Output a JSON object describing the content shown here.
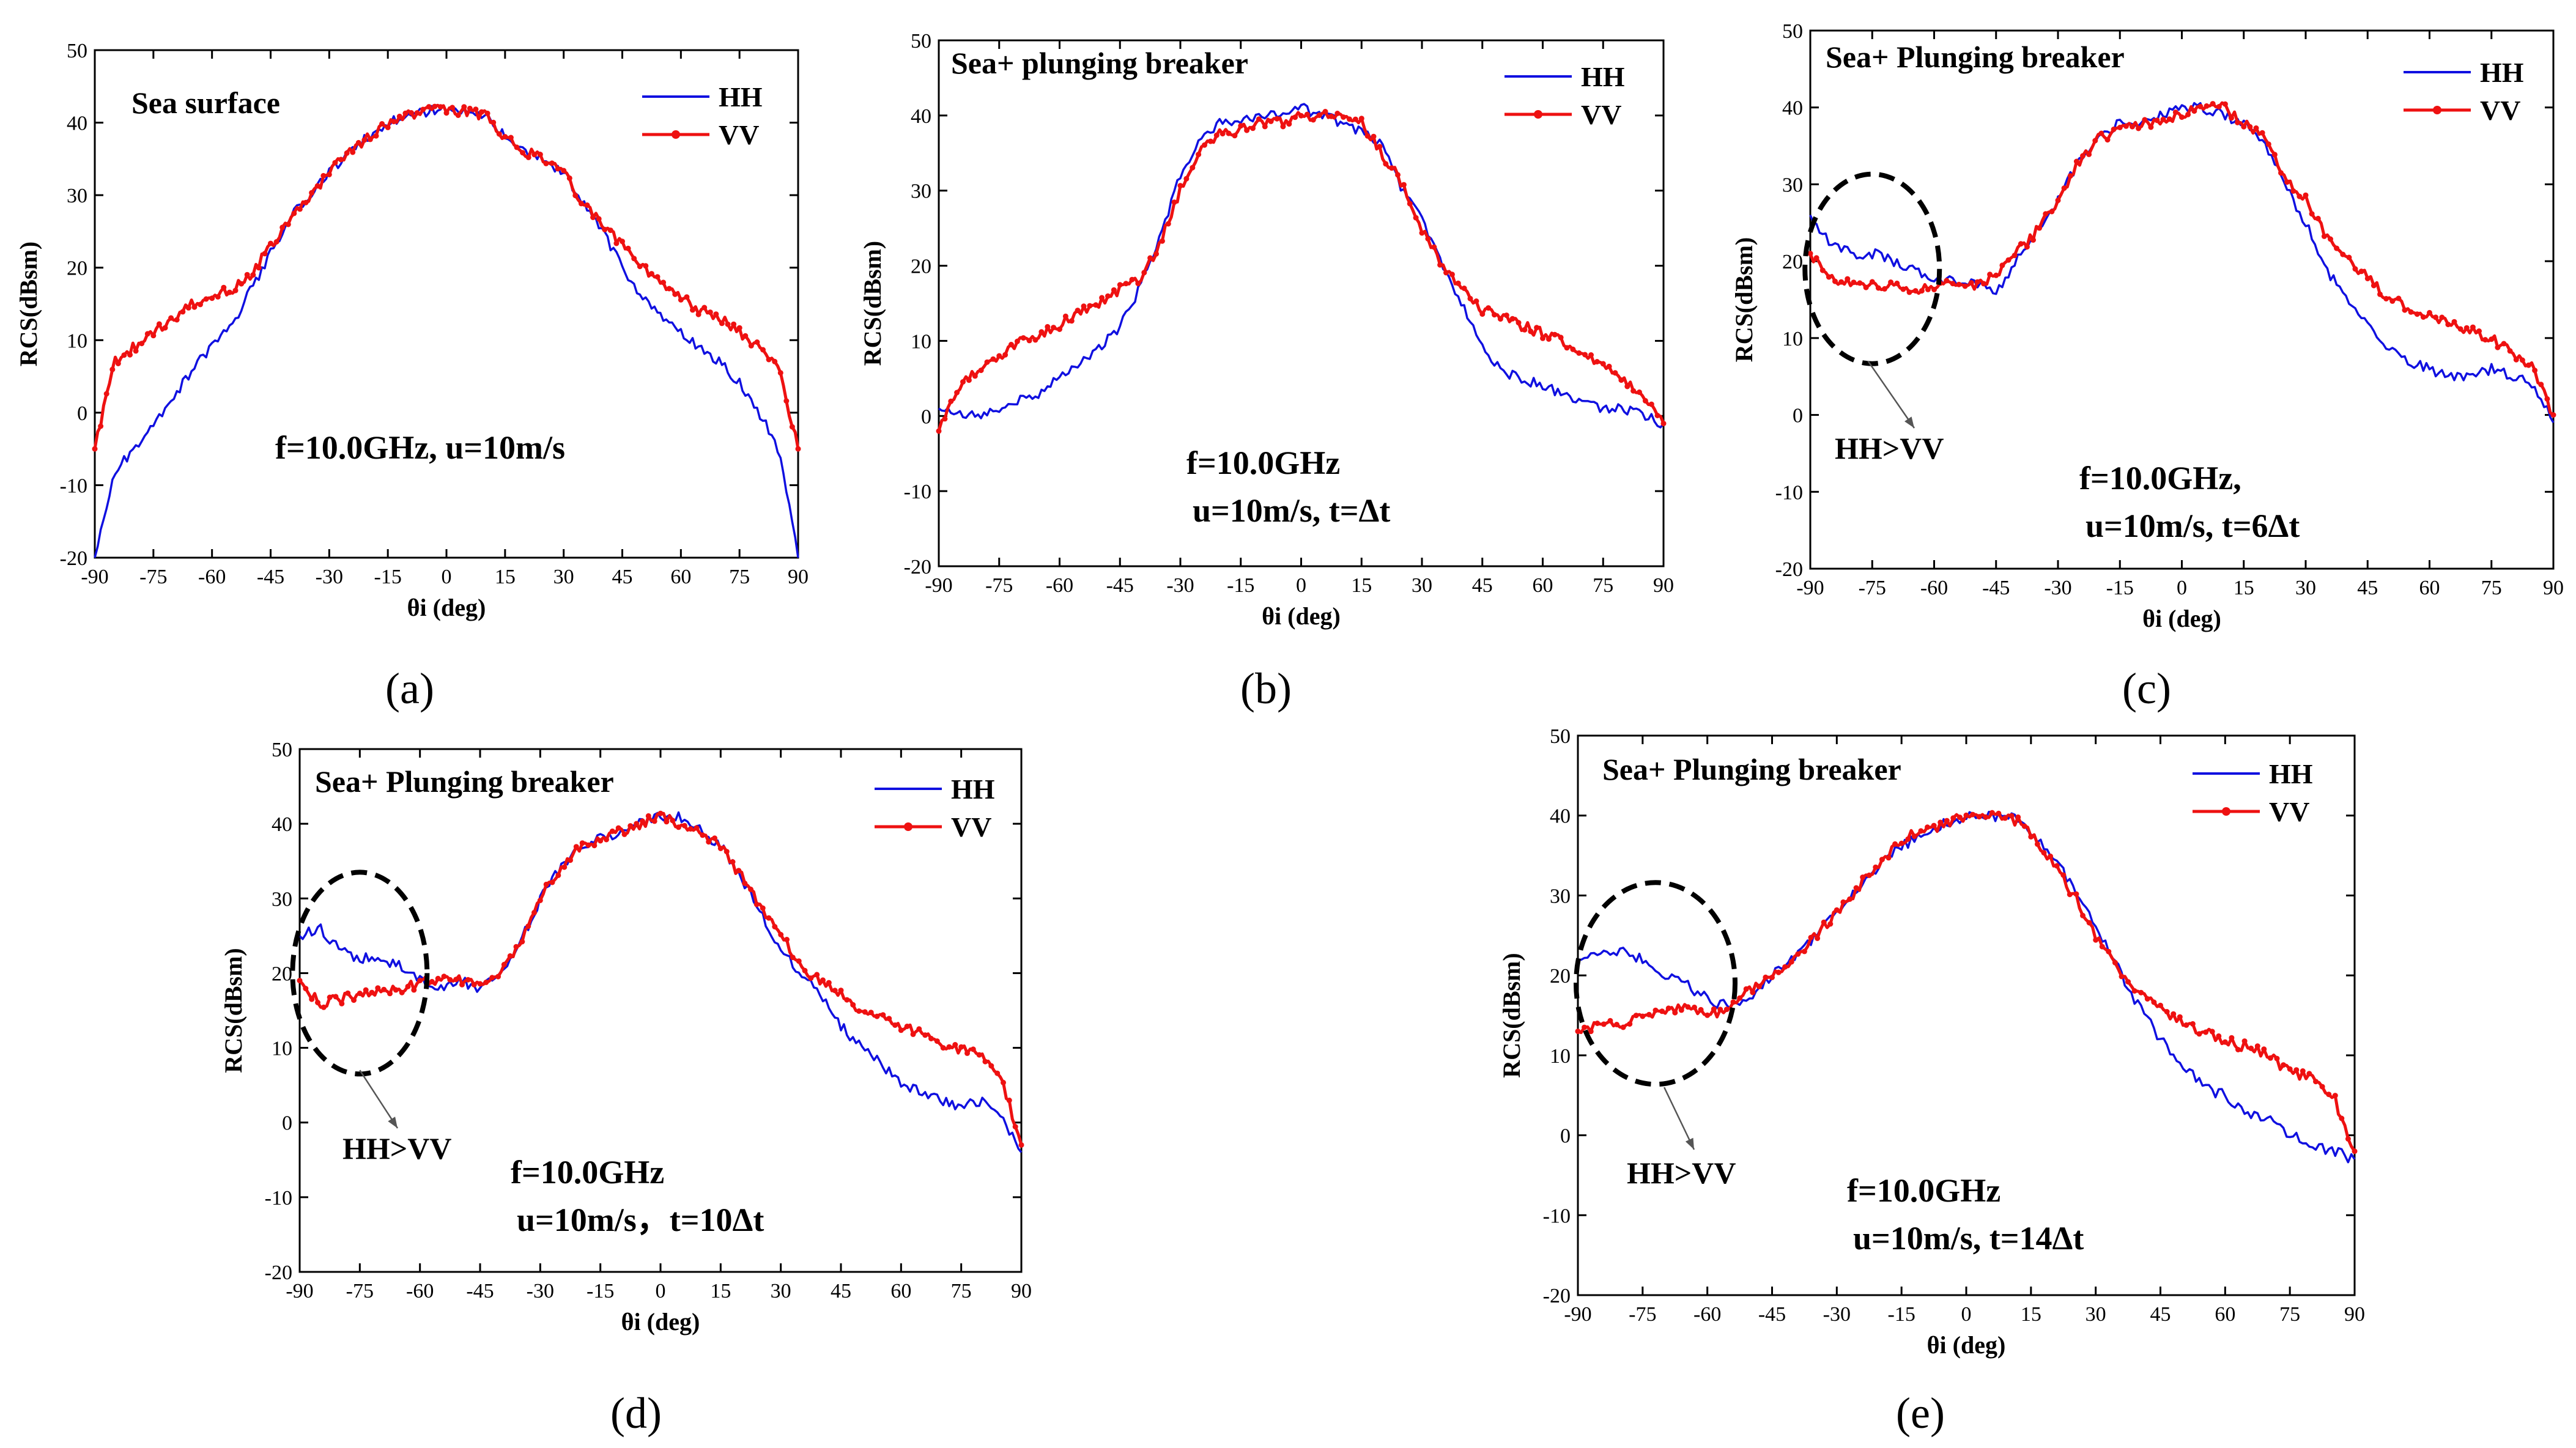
{
  "figure": {
    "panel_labels": [
      "(a)",
      "(b)",
      "(c)",
      "(d)",
      "(e)"
    ]
  },
  "chart_data": [
    {
      "type": "line",
      "panel": "(a)",
      "annotation": "Sea surface",
      "params_line1": "f=10.0GHz, u=10m/s",
      "params_line2": "",
      "xlabel": "θi (deg)",
      "ylabel": "RCS(dBsm)",
      "xlim": [
        -90,
        90
      ],
      "ylim": [
        -20,
        50
      ],
      "xticks": [
        -90,
        -75,
        -60,
        -45,
        -30,
        -15,
        0,
        15,
        30,
        45,
        60,
        75,
        90
      ],
      "yticks": [
        -20,
        -10,
        0,
        10,
        20,
        30,
        40,
        50
      ],
      "legend": [
        "HH",
        "VV"
      ],
      "colors": {
        "HH": "#1010e0",
        "VV": "#ee1111"
      },
      "x": [
        -90,
        -85,
        -80,
        -75,
        -70,
        -65,
        -60,
        -55,
        -50,
        -45,
        -40,
        -35,
        -30,
        -25,
        -20,
        -15,
        -10,
        -5,
        0,
        5,
        10,
        15,
        20,
        25,
        30,
        35,
        40,
        45,
        50,
        55,
        60,
        65,
        70,
        75,
        80,
        85,
        90
      ],
      "series": [
        {
          "name": "HH",
          "values": [
            -20,
            -8,
            -5,
            -2,
            2,
            6,
            9,
            12,
            17,
            22,
            27,
            30,
            33,
            36,
            38,
            40,
            41,
            41.5,
            42,
            41.5,
            41,
            38,
            36,
            35,
            33,
            29,
            25,
            20,
            16,
            13,
            11,
            9,
            7,
            4,
            0,
            -5,
            -20
          ]
        },
        {
          "name": "VV",
          "values": [
            -5,
            7,
            9,
            11,
            13,
            15,
            16,
            17,
            19,
            23,
            27,
            30,
            33,
            36,
            38,
            40,
            41,
            41.5,
            42,
            41.5,
            41,
            38,
            36,
            35,
            33,
            29,
            26,
            23,
            20,
            18,
            16,
            14,
            13,
            11,
            9,
            6,
            -5
          ]
        }
      ]
    },
    {
      "type": "line",
      "panel": "(b)",
      "annotation": "Sea+ plunging breaker",
      "params_line1": "f=10.0GHz",
      "params_line2": "u=10m/s, t=Δt",
      "xlabel": "θi (deg)",
      "ylabel": "RCS(dBsm)",
      "xlim": [
        -90,
        90
      ],
      "ylim": [
        -20,
        50
      ],
      "xticks": [
        -90,
        -75,
        -60,
        -45,
        -30,
        -15,
        0,
        15,
        30,
        45,
        60,
        75,
        90
      ],
      "yticks": [
        -20,
        -10,
        0,
        10,
        20,
        30,
        40,
        50
      ],
      "legend": [
        "HH",
        "VV"
      ],
      "colors": {
        "HH": "#1010e0",
        "VV": "#ee1111"
      },
      "x": [
        -90,
        -85,
        -80,
        -75,
        -70,
        -65,
        -60,
        -55,
        -50,
        -45,
        -40,
        -35,
        -30,
        -25,
        -20,
        -15,
        -10,
        -5,
        0,
        5,
        10,
        15,
        20,
        25,
        30,
        35,
        40,
        45,
        50,
        55,
        60,
        65,
        70,
        75,
        80,
        85,
        90
      ],
      "series": [
        {
          "name": "HH",
          "values": [
            1,
            0,
            0,
            1,
            2,
            3,
            5,
            7,
            9,
            12,
            17,
            24,
            32,
            37,
            39,
            39,
            40,
            40,
            41,
            40,
            39,
            38,
            36,
            30,
            26,
            20,
            15,
            9,
            6,
            5,
            4,
            3,
            2,
            1,
            1,
            0,
            -1
          ]
        },
        {
          "name": "VV",
          "values": [
            -2,
            4,
            6,
            8,
            10,
            11,
            12,
            14,
            15,
            17,
            18,
            23,
            30,
            35,
            38,
            38,
            39,
            39,
            40,
            40,
            40,
            39,
            35,
            31,
            25,
            20,
            17,
            14,
            13,
            12,
            11,
            10,
            8,
            7,
            5,
            3,
            -1
          ]
        }
      ]
    },
    {
      "type": "line",
      "panel": "(c)",
      "annotation": "Sea+ Plunging breaker",
      "params_line1": "f=10.0GHz,",
      "params_line2": "u=10m/s, t=6Δt",
      "callout": "HH>VV",
      "xlabel": "θi (deg)",
      "ylabel": "RCS(dBsm)",
      "xlim": [
        -90,
        90
      ],
      "ylim": [
        -20,
        50
      ],
      "xticks": [
        -90,
        -75,
        -60,
        -45,
        -30,
        -15,
        0,
        15,
        30,
        45,
        60,
        75,
        90
      ],
      "yticks": [
        -20,
        -10,
        0,
        10,
        20,
        30,
        40,
        50
      ],
      "legend": [
        "HH",
        "VV"
      ],
      "colors": {
        "HH": "#1010e0",
        "VV": "#ee1111"
      },
      "x": [
        -90,
        -85,
        -80,
        -75,
        -70,
        -65,
        -60,
        -55,
        -50,
        -45,
        -40,
        -35,
        -30,
        -25,
        -20,
        -15,
        -10,
        -5,
        0,
        5,
        10,
        15,
        20,
        25,
        30,
        35,
        40,
        45,
        50,
        55,
        60,
        65,
        70,
        75,
        80,
        85,
        90
      ],
      "series": [
        {
          "name": "HH",
          "values": [
            26,
            22,
            21,
            21,
            20,
            19,
            18,
            17.5,
            17,
            16,
            20,
            24,
            28,
            33,
            36,
            38,
            38,
            39,
            40,
            40,
            39,
            38,
            35,
            30,
            25,
            19,
            15,
            12,
            9,
            7,
            6,
            5,
            5,
            6,
            5,
            4,
            -1
          ]
        },
        {
          "name": "VV",
          "values": [
            21,
            18,
            17,
            17,
            17,
            16,
            17,
            17.5,
            17,
            18,
            21,
            24,
            28,
            33,
            36,
            37,
            38,
            38,
            39,
            40,
            40,
            38,
            36,
            31,
            28,
            23,
            20,
            18,
            15,
            14,
            13,
            12,
            11,
            10,
            8,
            6,
            0
          ]
        }
      ]
    },
    {
      "type": "line",
      "panel": "(d)",
      "annotation": "Sea+ Plunging breaker",
      "params_line1": "f=10.0GHz",
      "params_line2": "u=10m/s，t=10Δt",
      "callout": "HH>VV",
      "xlabel": "θi (deg)",
      "ylabel": "RCS(dBsm)",
      "xlim": [
        -90,
        90
      ],
      "ylim": [
        -20,
        50
      ],
      "xticks": [
        -90,
        -75,
        -60,
        -45,
        -30,
        -15,
        0,
        15,
        30,
        45,
        60,
        75,
        90
      ],
      "yticks": [
        -20,
        -10,
        0,
        10,
        20,
        30,
        40,
        50
      ],
      "legend": [
        "HH",
        "VV"
      ],
      "colors": {
        "HH": "#1010e0",
        "VV": "#ee1111"
      },
      "x": [
        -90,
        -85,
        -80,
        -75,
        -70,
        -65,
        -60,
        -55,
        -50,
        -45,
        -40,
        -35,
        -30,
        -25,
        -20,
        -15,
        -10,
        -5,
        0,
        5,
        10,
        15,
        20,
        25,
        30,
        35,
        40,
        45,
        50,
        55,
        60,
        65,
        70,
        75,
        80,
        85,
        90
      ],
      "series": [
        {
          "name": "HH",
          "values": [
            25,
            26,
            23,
            22,
            22,
            21,
            19,
            18,
            19,
            18,
            20,
            24,
            30,
            34,
            37,
            38,
            39,
            40,
            41,
            41,
            39,
            37,
            33,
            28,
            23,
            20,
            17,
            13,
            10,
            8,
            5,
            4,
            3,
            2,
            3,
            1,
            -4
          ]
        },
        {
          "name": "VV",
          "values": [
            19,
            16,
            16.5,
            17,
            17.5,
            18,
            18.5,
            19,
            19,
            18.5,
            20,
            24,
            30,
            34,
            37,
            38,
            39,
            40,
            41,
            40,
            39,
            37,
            33,
            29,
            25,
            21,
            19,
            17,
            15,
            14,
            13,
            12,
            10,
            10,
            9,
            6,
            -3
          ]
        }
      ]
    },
    {
      "type": "line",
      "panel": "(e)",
      "annotation": "Sea+ Plunging breaker",
      "params_line1": "f=10.0GHz",
      "params_line2": "u=10m/s, t=14Δt",
      "callout": "HH>VV",
      "xlabel": "θi (deg)",
      "ylabel": "RCS(dBsm)",
      "xlim": [
        -90,
        90
      ],
      "ylim": [
        -20,
        50
      ],
      "xticks": [
        -90,
        -75,
        -60,
        -45,
        -30,
        -15,
        0,
        15,
        30,
        45,
        60,
        75,
        90
      ],
      "yticks": [
        -20,
        -10,
        0,
        10,
        20,
        30,
        40,
        50
      ],
      "legend": [
        "HH",
        "VV"
      ],
      "colors": {
        "HH": "#1010e0",
        "VV": "#ee1111"
      },
      "x": [
        -90,
        -85,
        -80,
        -75,
        -70,
        -65,
        -60,
        -55,
        -50,
        -45,
        -40,
        -35,
        -30,
        -25,
        -20,
        -15,
        -10,
        -5,
        0,
        5,
        10,
        15,
        20,
        25,
        30,
        35,
        40,
        45,
        50,
        55,
        60,
        65,
        70,
        75,
        80,
        85,
        90
      ],
      "series": [
        {
          "name": "HH",
          "values": [
            22,
            23,
            23,
            22,
            20,
            19,
            17,
            16,
            17,
            20,
            22,
            25,
            28,
            31,
            34,
            36,
            38,
            39,
            40,
            40,
            40,
            38,
            35,
            31,
            26,
            21,
            16,
            12,
            9,
            6,
            5,
            3,
            2,
            0,
            -1,
            -2,
            -3
          ]
        },
        {
          "name": "VV",
          "values": [
            13,
            14,
            14,
            15,
            15,
            16,
            15,
            16,
            18,
            20,
            22,
            25,
            28,
            31,
            34,
            37,
            38,
            39,
            40,
            40,
            40,
            38,
            34,
            30,
            25,
            21,
            18,
            16,
            14,
            13,
            12,
            11,
            10,
            8,
            7,
            5,
            -2
          ]
        }
      ]
    }
  ]
}
